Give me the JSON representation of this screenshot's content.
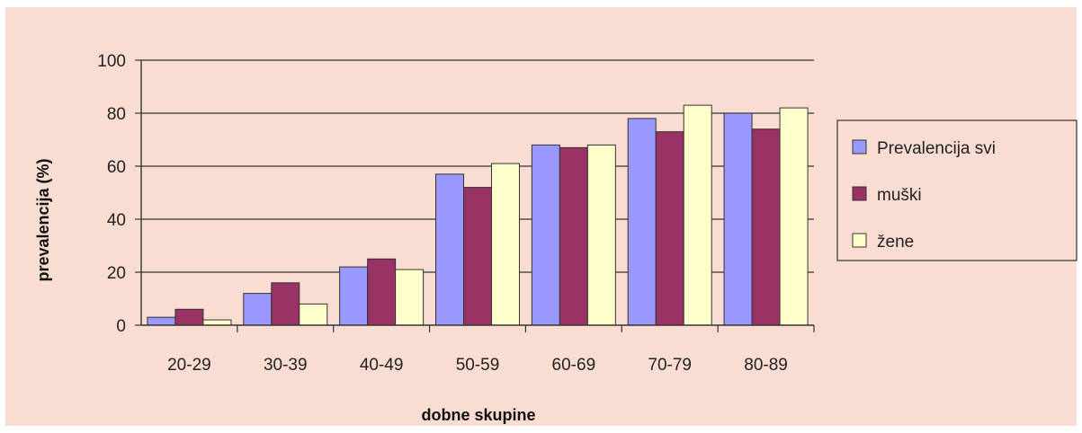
{
  "chart_data": {
    "type": "bar",
    "title": "",
    "xlabel": "dobne skupine",
    "ylabel": "prevalencija (%)",
    "ylim": [
      0,
      100
    ],
    "yticks": [
      0,
      20,
      40,
      60,
      80,
      100
    ],
    "grid": "horizontal",
    "legend_position": "right",
    "categories": [
      "20-29",
      "30-39",
      "40-49",
      "50-59",
      "60-69",
      "70-79",
      "80-89"
    ],
    "series": [
      {
        "name": "Prevalencija svi",
        "color": "#9999ff",
        "values": [
          3,
          12,
          22,
          57,
          68,
          78,
          80
        ]
      },
      {
        "name": "muški",
        "color": "#993366",
        "values": [
          6,
          16,
          25,
          52,
          67,
          73,
          74
        ]
      },
      {
        "name": "žene",
        "color": "#ffffcc",
        "values": [
          2,
          8,
          21,
          61,
          68,
          83,
          82
        ]
      }
    ],
    "colors": {
      "background": "#f9dcd2",
      "axis": "#333333",
      "gridline": "#333333",
      "bar_outline": "#333333"
    }
  }
}
